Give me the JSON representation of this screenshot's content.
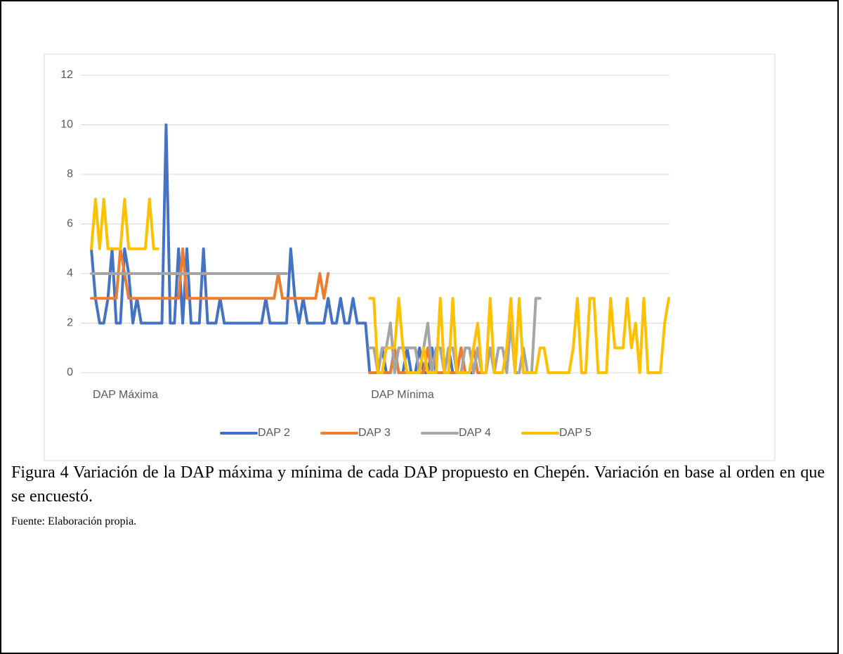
{
  "chart_data": {
    "type": "line",
    "categories": [
      "DAP Máxima",
      null,
      null,
      null,
      null,
      null,
      null,
      null,
      null,
      null,
      null,
      null,
      null,
      null,
      null,
      null,
      null,
      null,
      null,
      null,
      null,
      null,
      null,
      null,
      null,
      null,
      null,
      null,
      null,
      null,
      null,
      null,
      null,
      null,
      null,
      null,
      null,
      null,
      null,
      null,
      null,
      null,
      null,
      null,
      null,
      null,
      null,
      null,
      null,
      null,
      null,
      null,
      null,
      null,
      null,
      null,
      null,
      null,
      null,
      null,
      null,
      null,
      null,
      null,
      null,
      null,
      null,
      "DAP Mínima",
      null,
      null,
      null,
      null,
      null,
      null,
      null,
      null,
      null,
      null,
      null,
      null,
      null,
      null,
      null,
      null,
      null,
      null,
      null,
      null,
      null,
      null,
      null,
      null,
      null,
      null,
      null,
      null,
      null,
      null,
      null,
      null,
      null,
      null,
      null,
      null,
      null,
      null,
      null,
      null,
      null,
      null,
      null,
      null,
      null,
      null,
      null,
      null,
      null,
      null,
      null,
      null,
      null,
      null,
      null,
      null,
      null,
      null,
      null,
      null,
      null,
      null,
      null,
      null,
      null,
      null,
      null,
      null,
      null,
      null,
      null,
      null
    ],
    "series": [
      {
        "name": "DAP 2",
        "color": "#4472c4",
        "values": [
          5,
          3,
          2,
          2,
          3,
          5,
          2,
          2,
          5,
          4,
          2,
          3,
          2,
          2,
          2,
          2,
          2,
          2,
          10,
          2,
          2,
          5,
          2,
          5,
          2,
          2,
          2,
          5,
          2,
          2,
          2,
          3,
          2,
          2,
          2,
          2,
          2,
          2,
          2,
          2,
          2,
          2,
          3,
          2,
          2,
          2,
          2,
          2,
          5,
          3,
          2,
          3,
          2,
          2,
          2,
          2,
          2,
          3,
          2,
          2,
          3,
          2,
          2,
          3,
          2,
          2,
          2,
          0,
          0,
          0,
          1,
          0,
          0,
          1,
          0,
          0,
          1,
          0,
          0,
          1,
          0,
          0,
          1,
          0,
          0,
          0,
          1,
          0,
          0,
          1,
          0,
          0,
          0,
          1,
          0,
          null,
          null,
          null,
          null,
          null,
          null,
          null,
          null,
          null,
          null,
          null,
          null,
          null,
          null,
          null,
          null,
          null,
          null,
          null,
          null,
          null,
          null,
          null,
          null,
          null,
          null,
          null,
          null,
          null,
          null,
          null,
          null,
          null,
          null,
          null,
          null,
          null,
          null,
          null,
          null,
          null,
          null,
          null,
          null,
          null
        ]
      },
      {
        "name": "DAP 3",
        "color": "#ed7d31",
        "values": [
          3,
          3,
          3,
          3,
          3,
          3,
          3,
          5,
          4,
          3,
          3,
          3,
          3,
          3,
          3,
          3,
          3,
          3,
          3,
          3,
          3,
          3,
          5,
          3,
          3,
          3,
          3,
          3,
          3,
          3,
          3,
          3,
          3,
          3,
          3,
          3,
          3,
          3,
          3,
          3,
          3,
          3,
          3,
          3,
          3,
          4,
          3,
          3,
          3,
          3,
          3,
          3,
          3,
          3,
          3,
          4,
          3,
          4,
          null,
          null,
          null,
          null,
          null,
          null,
          null,
          null,
          null,
          0,
          0,
          0,
          0,
          0,
          0,
          1,
          0,
          0,
          0,
          0,
          0,
          0,
          0,
          1,
          0,
          0,
          0,
          0,
          0,
          0,
          0,
          1,
          0,
          0,
          1,
          0,
          0,
          null,
          null,
          null,
          null,
          null,
          null,
          null,
          null,
          null,
          null,
          null,
          null,
          null,
          null,
          null,
          null,
          null,
          null,
          null,
          null,
          null,
          null,
          null,
          null,
          null,
          null,
          null,
          null,
          null,
          null,
          null,
          null,
          null,
          null,
          null,
          null,
          null,
          null,
          null,
          null,
          null,
          null,
          null,
          null,
          null
        ]
      },
      {
        "name": "DAP 4",
        "color": "#a5a5a5",
        "values": [
          4,
          4,
          4,
          4,
          4,
          4,
          4,
          4,
          4,
          4,
          4,
          4,
          4,
          4,
          4,
          4,
          4,
          4,
          4,
          4,
          4,
          4,
          4,
          4,
          4,
          4,
          4,
          4,
          4,
          4,
          4,
          4,
          4,
          4,
          4,
          4,
          4,
          4,
          4,
          4,
          4,
          4,
          4,
          4,
          4,
          4,
          4,
          4,
          null,
          null,
          null,
          null,
          null,
          null,
          null,
          null,
          null,
          null,
          null,
          null,
          null,
          null,
          null,
          null,
          null,
          null,
          null,
          1,
          1,
          0,
          1,
          1,
          2,
          0,
          1,
          1,
          1,
          1,
          1,
          0,
          1,
          2,
          0,
          1,
          1,
          0,
          1,
          1,
          0,
          0,
          1,
          1,
          0,
          1,
          0,
          0,
          1,
          0,
          1,
          1,
          0,
          2,
          0,
          0,
          1,
          0,
          0,
          3,
          3,
          null,
          null,
          null,
          null,
          null,
          null,
          null,
          null,
          null,
          null,
          null,
          null,
          null,
          null,
          null,
          null,
          null,
          null,
          null,
          null,
          null,
          null,
          null,
          null,
          null,
          null,
          null,
          null,
          null,
          null,
          null
        ]
      },
      {
        "name": "DAP 5",
        "color": "#ffc000",
        "values": [
          5,
          7,
          5,
          7,
          5,
          5,
          5,
          5,
          7,
          5,
          5,
          5,
          5,
          5,
          7,
          5,
          5,
          null,
          null,
          null,
          null,
          null,
          null,
          null,
          null,
          null,
          null,
          null,
          null,
          null,
          null,
          null,
          null,
          null,
          null,
          null,
          null,
          null,
          null,
          null,
          null,
          null,
          null,
          null,
          null,
          null,
          null,
          null,
          null,
          null,
          null,
          null,
          null,
          null,
          null,
          null,
          null,
          null,
          null,
          null,
          null,
          null,
          null,
          null,
          null,
          null,
          null,
          3,
          3,
          0,
          0,
          1,
          1,
          1,
          3,
          1,
          0,
          0,
          0,
          0,
          1,
          0,
          0,
          0,
          3,
          0,
          0,
          3,
          0,
          0,
          0,
          0,
          1,
          2,
          0,
          0,
          3,
          0,
          0,
          0,
          1,
          3,
          0,
          3,
          0,
          0,
          0,
          0,
          1,
          1,
          0,
          0,
          0,
          0,
          0,
          0,
          1,
          3,
          0,
          0,
          3,
          3,
          0,
          0,
          0,
          3,
          1,
          1,
          1,
          3,
          1,
          2,
          0,
          3,
          0,
          0,
          0,
          0,
          2,
          3
        ]
      }
    ],
    "ylim": [
      0,
      12
    ],
    "yticks": [
      0,
      2,
      4,
      6,
      8,
      10,
      12
    ],
    "grid": true,
    "legend": "bottom"
  },
  "caption": "Figura 4 Variación de la DAP máxima y mínima de cada DAP propuesto en Chepén. Variación en base al orden en que se encuestó.",
  "source": "Fuente: Elaboración propia."
}
